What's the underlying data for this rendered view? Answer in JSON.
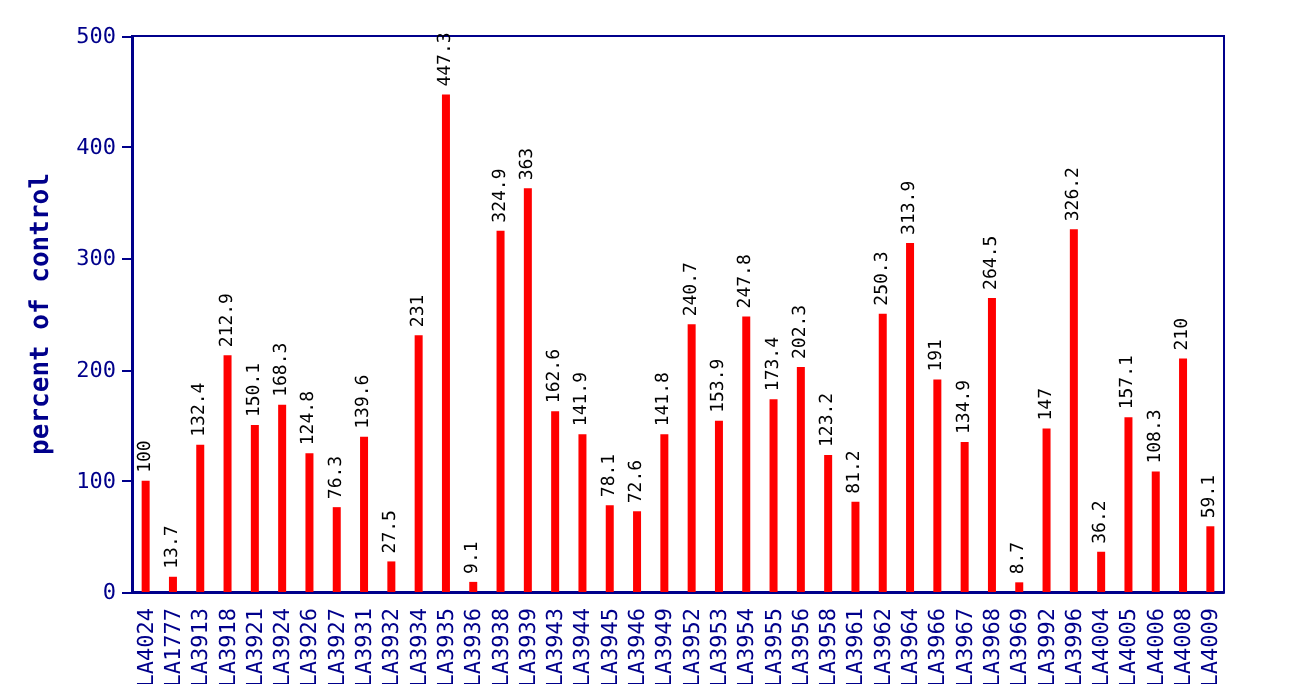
{
  "chart_data": {
    "type": "bar",
    "ylabel": "percent of control",
    "categories": [
      "LA4024",
      "LA1777",
      "LA3913",
      "LA3918",
      "LA3921",
      "LA3924",
      "LA3926",
      "LA3927",
      "LA3931",
      "LA3932",
      "LA3934",
      "LA3935",
      "LA3936",
      "LA3938",
      "LA3939",
      "LA3943",
      "LA3944",
      "LA3945",
      "LA3946",
      "LA3949",
      "LA3952",
      "LA3953",
      "LA3954",
      "LA3955",
      "LA3956",
      "LA3958",
      "LA3961",
      "LA3962",
      "LA3964",
      "LA3966",
      "LA3967",
      "LA3968",
      "LA3969",
      "LA3992",
      "LA3996",
      "LA4004",
      "LA4005",
      "LA4006",
      "LA4008",
      "LA4009"
    ],
    "values": [
      100,
      13.7,
      132.4,
      212.9,
      150.1,
      168.3,
      124.8,
      76.3,
      139.6,
      27.5,
      231,
      447.3,
      9.1,
      324.9,
      363,
      162.6,
      141.9,
      78.1,
      72.6,
      141.8,
      240.7,
      153.9,
      247.8,
      173.4,
      202.3,
      123.2,
      81.2,
      250.3,
      313.9,
      191,
      134.9,
      264.5,
      8.7,
      147,
      326.2,
      36.2,
      157.1,
      108.3,
      210,
      59.1
    ],
    "color": "#ff0000",
    "ylim": [
      0,
      500
    ],
    "yticks": [
      0,
      100,
      200,
      300,
      400,
      500
    ],
    "data_labels": true
  }
}
